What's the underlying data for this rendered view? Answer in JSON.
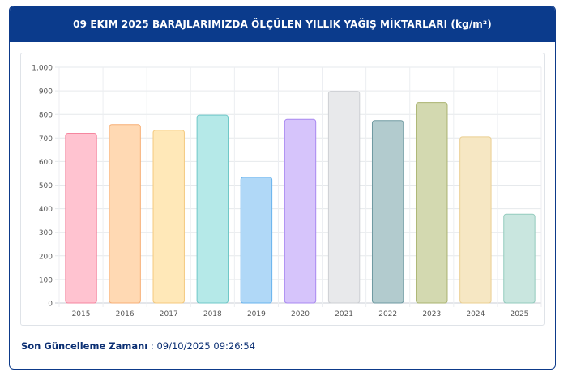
{
  "header": {
    "title": "09 EKIM 2025 BARAJLARIMIZDA ÖLÇÜLEN YILLIK YAĞIŞ MİKTARLARI (kg/m²)"
  },
  "footer": {
    "label": "Son Güncelleme Zamanı",
    "separator": " : ",
    "value": "09/10/2025 09:26:54"
  },
  "chart_data": {
    "type": "bar",
    "categories": [
      "2015",
      "2016",
      "2017",
      "2018",
      "2019",
      "2020",
      "2021",
      "2022",
      "2023",
      "2024",
      "2025"
    ],
    "values": [
      720,
      757,
      733,
      797,
      533,
      779,
      898,
      774,
      850,
      705,
      377
    ],
    "ylim": [
      0,
      1000
    ],
    "yticks": [
      0,
      100,
      200,
      300,
      400,
      500,
      600,
      700,
      800,
      900,
      1000
    ],
    "ytick_labels": [
      "0",
      "100",
      "200",
      "300",
      "400",
      "500",
      "600",
      "700",
      "800",
      "900",
      "1.000"
    ],
    "grid": true,
    "colors": {
      "fills": [
        "#ffc3d0",
        "#ffd9b3",
        "#ffe8b8",
        "#b5e9e8",
        "#b0d8f7",
        "#d6c4fb",
        "#e8e9eb",
        "#b2cbce",
        "#d3d9b0",
        "#f6e7c3",
        "#c9e6df"
      ],
      "strokes": [
        "#f5869f",
        "#f7ae74",
        "#f4c97e",
        "#6fc8c8",
        "#68b3ee",
        "#a888f0",
        "#cdcfd3",
        "#6f9aa1",
        "#a9b36f",
        "#ebcf92",
        "#93cbbd"
      ]
    }
  }
}
